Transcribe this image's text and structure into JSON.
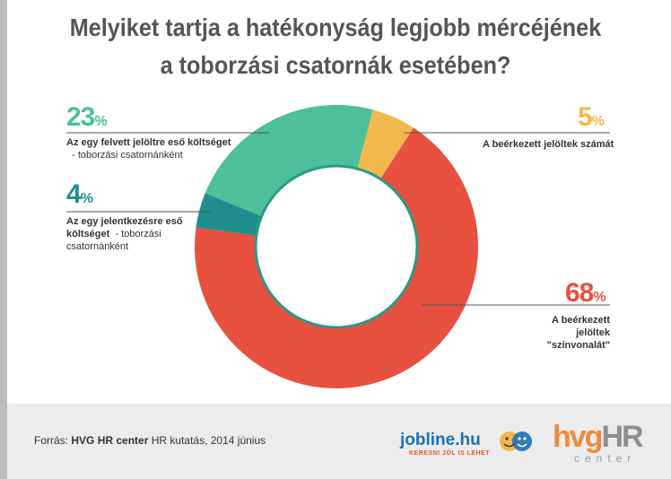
{
  "title": {
    "line1": "Melyiket tartja a hatékonyság legjobb mércéjének",
    "line2": "a toborzási csatornák esetében?"
  },
  "chart_data": {
    "type": "pie",
    "donut": true,
    "title": "Melyiket tartja a hatékonyság legjobb mércéjének a toborzási csatornák esetében?",
    "categories": [
      "A beérkezett jelöltek számát",
      "A beérkezett jelöltek \"színvonalát\"",
      "Az egy jelentkezésre eső költséget - toborzási csatornánként",
      "Az egy felvett jelöltre eső költséget - toborzási csatornánként"
    ],
    "values": [
      5,
      68,
      4,
      23
    ],
    "colors": [
      "#f2b84b",
      "#e8503f",
      "#1f8f8e",
      "#4dbf9b"
    ],
    "pct_labels": [
      "5",
      "68",
      "4",
      "23"
    ],
    "pct_sign": "%"
  },
  "labels": {
    "l23_bold": "Az egy felvett jelöltre eső költséget",
    "l23_rest": "- toborzási csatornánként",
    "l4_bold1": "Az egy jelentkezésre eső",
    "l4_bold2": "költséget",
    "l4_rest": "- toborzási csatornánként",
    "l5": "A beérkezett jelöltek számát",
    "l68_line1": "A beérkezett jelöltek",
    "l68_line2": "\"színvonalát\""
  },
  "footer": {
    "source_prefix": "Forrás:",
    "source_bold": "HVG HR center",
    "source_rest": "HR kutatás, 2014 június",
    "jobline": "jobline.hu",
    "jobline_tag": "KERESNI JÓL IS LEHET",
    "hvg": "hvg",
    "hr": "HR",
    "center": "center"
  }
}
